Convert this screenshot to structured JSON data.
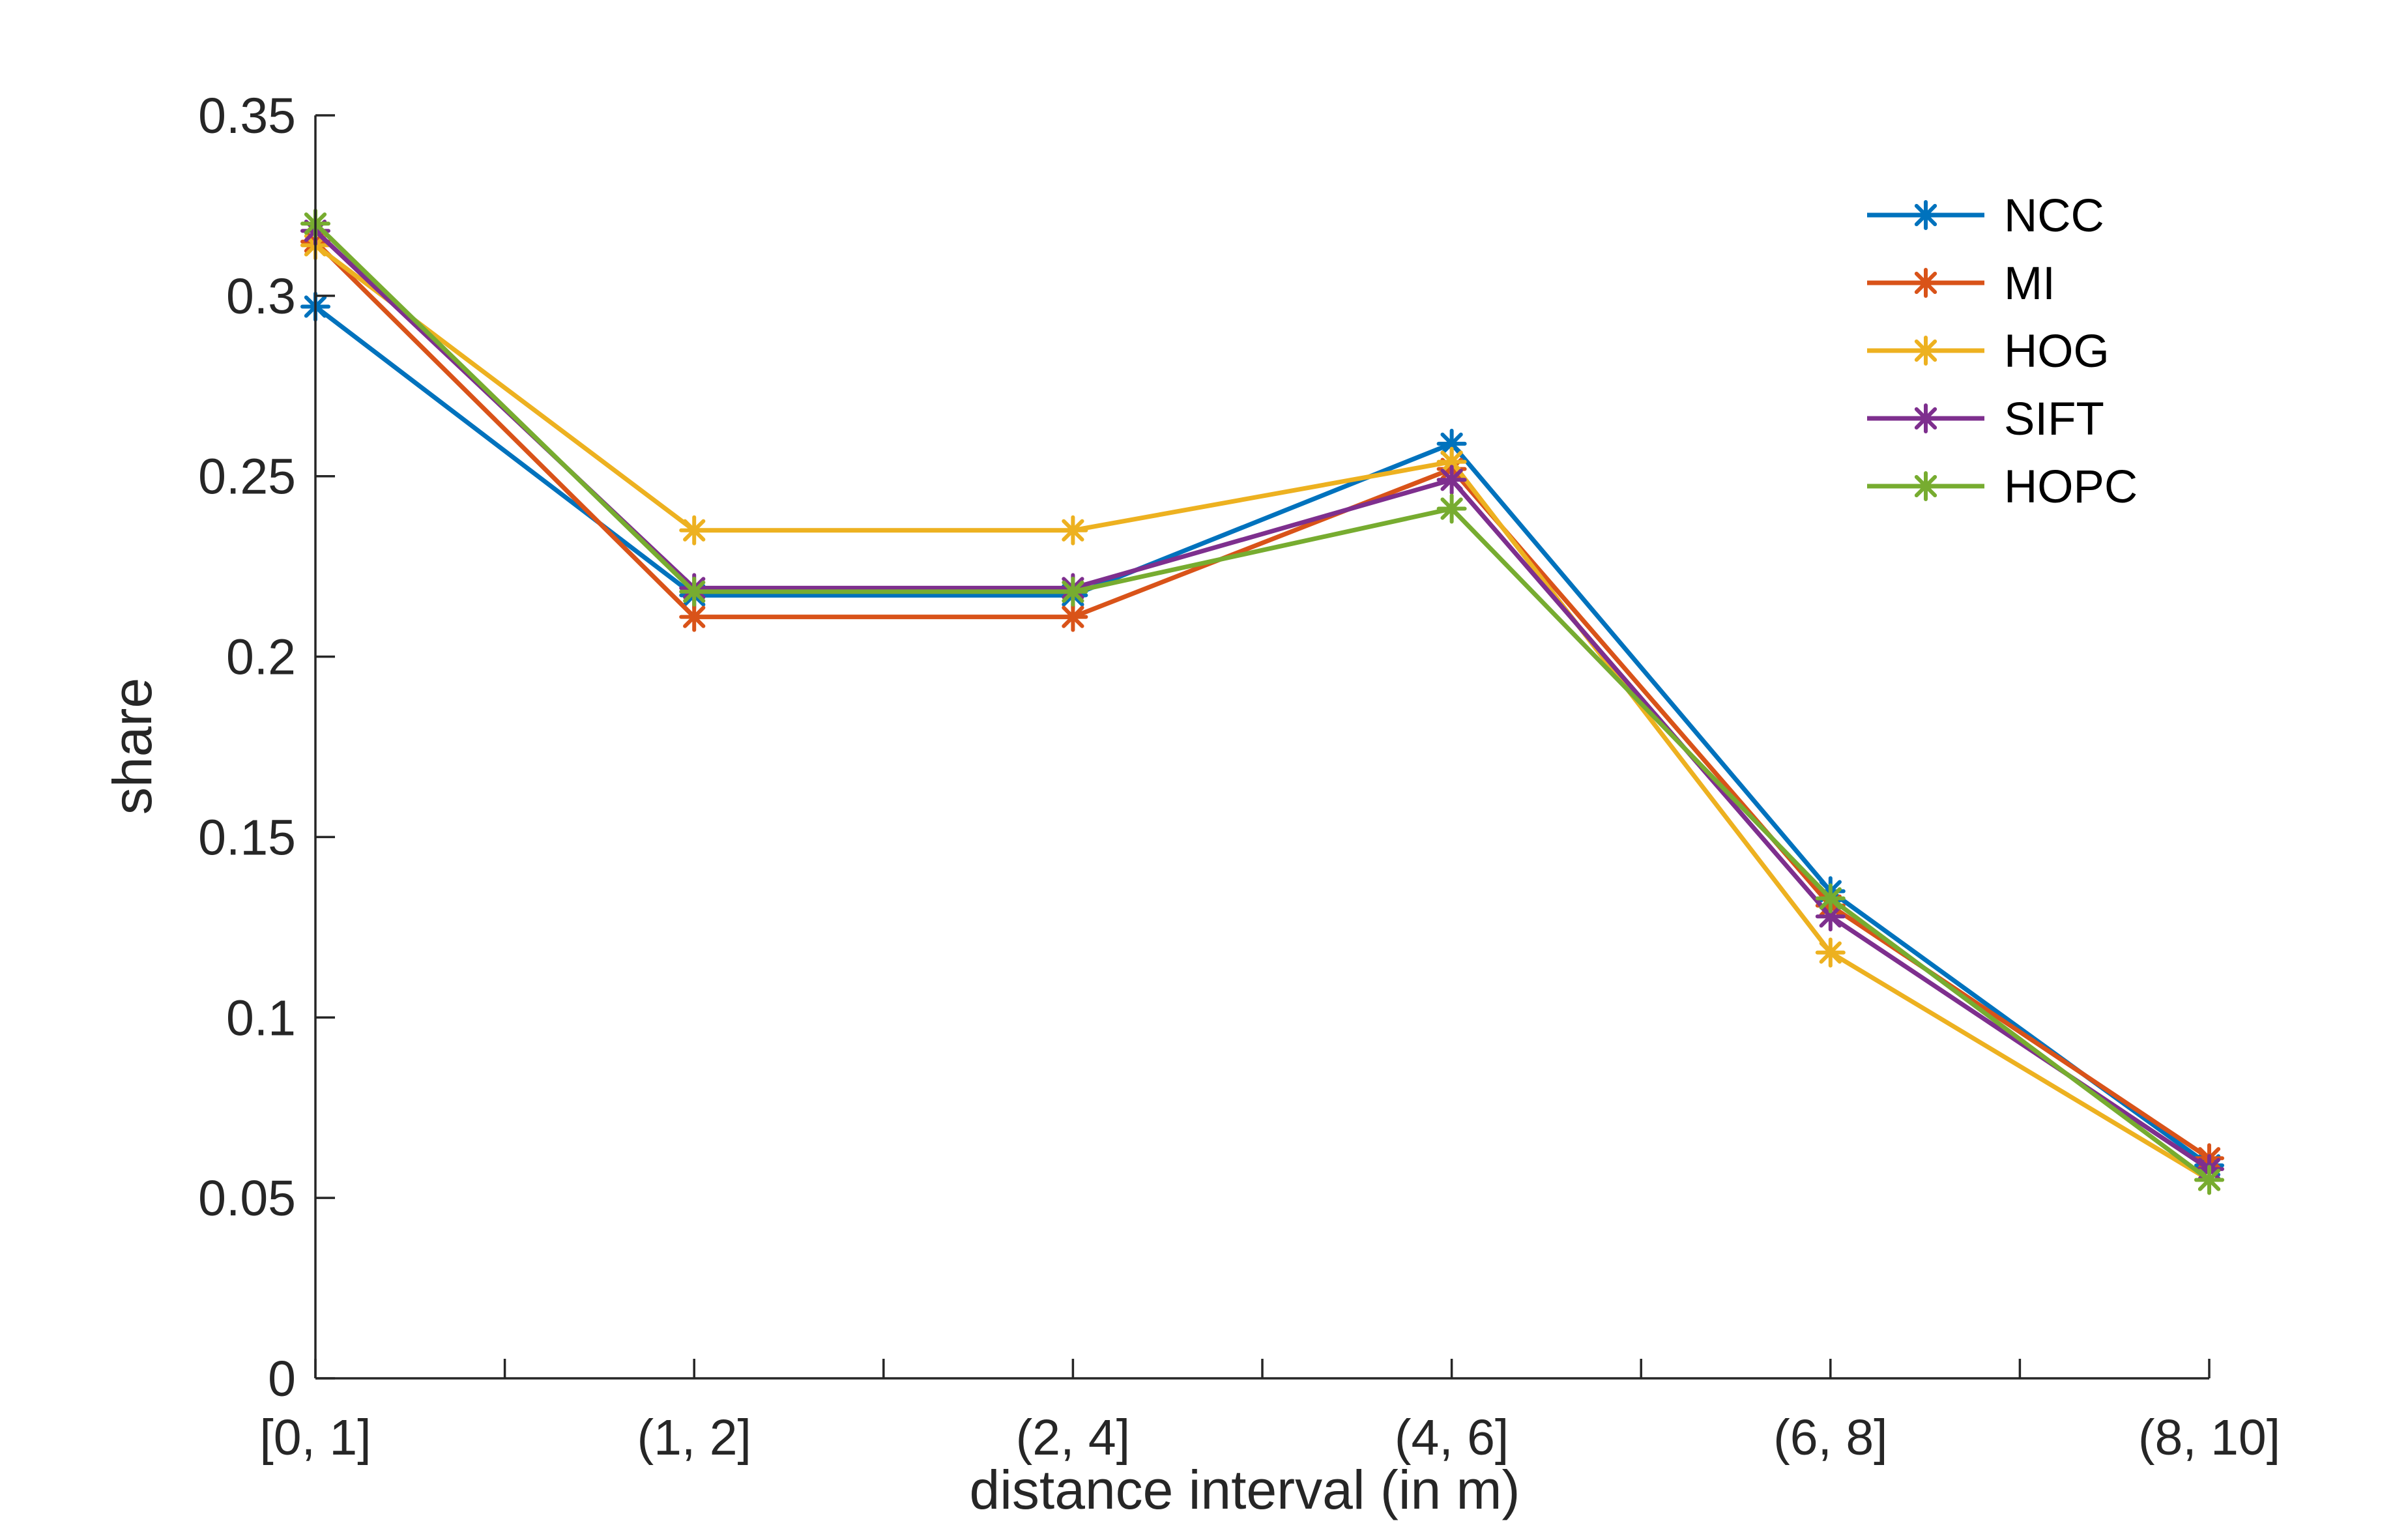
{
  "chart_data": {
    "type": "line",
    "title": "",
    "xlabel": "distance interval (in m)",
    "ylabel": "share",
    "categories": [
      "[0, 1]",
      "(1, 2]",
      "(2, 4]",
      "(4, 6]",
      "(6, 8]",
      "(8, 10]"
    ],
    "ylim": [
      0,
      0.35
    ],
    "yticks": [
      0,
      0.05,
      0.1,
      0.15,
      0.2,
      0.25,
      0.3,
      0.35
    ],
    "ytick_labels": [
      "0",
      "0.05",
      "0.1",
      "0.15",
      "0.2",
      "0.25",
      "0.3",
      "0.35"
    ],
    "grid": false,
    "legend_position": "top-right",
    "marker": "asterisk",
    "series": [
      {
        "name": "NCC",
        "color": "#0072BD",
        "values": [
          0.297,
          0.217,
          0.217,
          0.259,
          0.135,
          0.059
        ]
      },
      {
        "name": "MI",
        "color": "#D95319",
        "values": [
          0.315,
          0.211,
          0.211,
          0.252,
          0.131,
          0.061
        ]
      },
      {
        "name": "HOG",
        "color": "#EDB120",
        "values": [
          0.314,
          0.235,
          0.235,
          0.254,
          0.118,
          0.055
        ]
      },
      {
        "name": "SIFT",
        "color": "#7E2F8E",
        "values": [
          0.318,
          0.219,
          0.219,
          0.249,
          0.128,
          0.058
        ]
      },
      {
        "name": "HOPC",
        "color": "#77AC30",
        "values": [
          0.32,
          0.218,
          0.218,
          0.241,
          0.133,
          0.055
        ]
      }
    ]
  }
}
